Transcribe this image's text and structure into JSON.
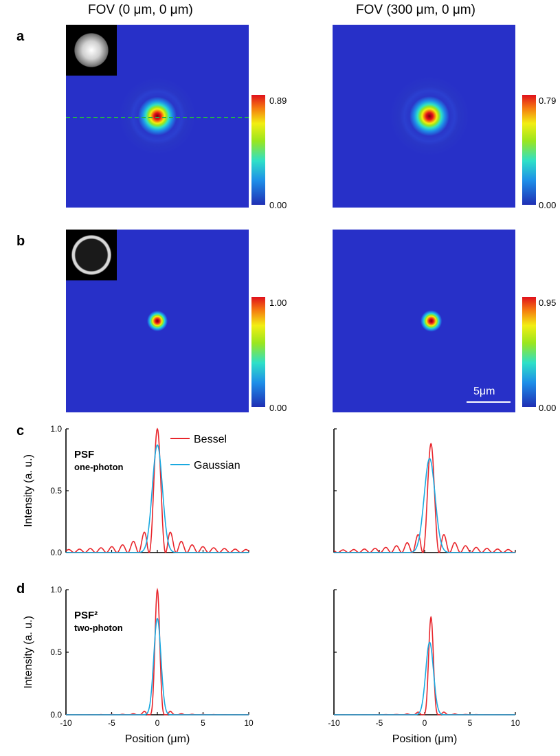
{
  "column_titles": {
    "left": "FOV (0 μm, 0 μm)",
    "right": "FOV (300 μm, 0 μm)"
  },
  "panel_letters": {
    "a": "a",
    "b": "b",
    "c": "c",
    "d": "d"
  },
  "colorbars": {
    "a_left": {
      "max": "0.89",
      "min": "0.00"
    },
    "a_right": {
      "max": "0.79",
      "min": "0.00"
    },
    "b_left": {
      "max": "1.00",
      "min": "0.00"
    },
    "b_right": {
      "max": "0.95",
      "min": "0.00"
    }
  },
  "scale_bar": "5μm",
  "colors": {
    "bessel": "#e8262c",
    "gaussian": "#1aa9e0",
    "heatmap_bg": "#2730c8",
    "guide_line": "#22b14c"
  },
  "chart_data": [
    {
      "id": "c-left",
      "type": "line",
      "label_main": "PSF",
      "label_sub": "one-photon",
      "ylabel": "Intensity (a. u.)",
      "xlabel": "",
      "xlim": [
        -10,
        10
      ],
      "ylim": [
        0,
        1.0
      ],
      "x_ticks": [],
      "y_ticks": [
        "0.0",
        "0.5",
        "1.0"
      ],
      "legend": [
        "Bessel",
        "Gaussian"
      ],
      "legend_position": "top-right",
      "series": [
        {
          "name": "Bessel",
          "shape": "bessel",
          "center": 0,
          "peak": 1.0,
          "sidelobe": 0.15,
          "power": 1
        },
        {
          "name": "Gaussian",
          "shape": "gaussian",
          "center": 0,
          "peak": 0.87,
          "sigma": 0.55,
          "power": 1
        }
      ]
    },
    {
      "id": "c-right",
      "type": "line",
      "xlim": [
        -10,
        10
      ],
      "ylim": [
        0,
        1.0
      ],
      "x_ticks": [],
      "y_ticks": [],
      "series": [
        {
          "name": "Bessel",
          "shape": "bessel",
          "center": 0.7,
          "peak": 0.88,
          "sidelobe": 0.14,
          "power": 1
        },
        {
          "name": "Gaussian",
          "shape": "gaussian",
          "center": 0.55,
          "peak": 0.76,
          "sigma": 0.6,
          "power": 1
        }
      ]
    },
    {
      "id": "d-left",
      "type": "line",
      "label_main": "PSF²",
      "label_sub": "two-photon",
      "ylabel": "Intensity (a. u.)",
      "xlabel": "Position (μm)",
      "xlim": [
        -10,
        10
      ],
      "ylim": [
        0,
        1.0
      ],
      "x_ticks": [
        "-10",
        "-5",
        "0",
        "5",
        "10"
      ],
      "y_ticks": [
        "0.0",
        "0.5",
        "1.0"
      ],
      "series": [
        {
          "name": "Bessel",
          "shape": "bessel",
          "center": 0,
          "peak": 1.0,
          "sidelobe": 0.15,
          "power": 2
        },
        {
          "name": "Gaussian",
          "shape": "gaussian",
          "center": 0,
          "peak": 0.77,
          "sigma": 0.55,
          "power": 2
        }
      ]
    },
    {
      "id": "d-right",
      "type": "line",
      "xlabel": "Position (μm)",
      "xlim": [
        -10,
        10
      ],
      "ylim": [
        0,
        1.0
      ],
      "x_ticks": [
        "-10",
        "-5",
        "0",
        "5",
        "10"
      ],
      "y_ticks": [],
      "series": [
        {
          "name": "Bessel",
          "shape": "bessel",
          "center": 0.7,
          "peak": 0.78,
          "sidelobe": 0.14,
          "power": 2
        },
        {
          "name": "Gaussian",
          "shape": "gaussian",
          "center": 0.55,
          "peak": 0.58,
          "sigma": 0.6,
          "power": 2
        }
      ]
    }
  ]
}
